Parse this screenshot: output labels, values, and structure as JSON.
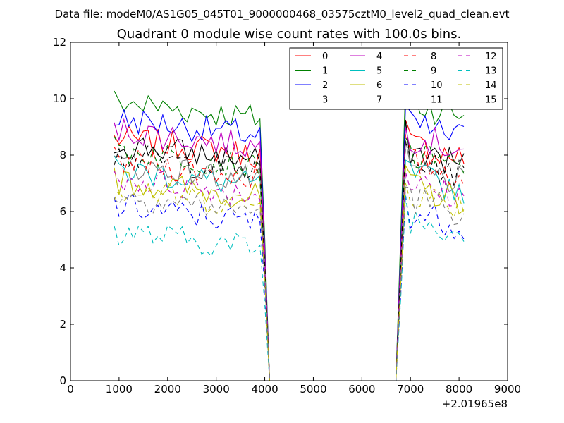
{
  "chart_data": {
    "type": "line",
    "suptitle": "Data file: modeM0/AS1G05_045T01_9000000468_03575cztM0_level2_quad_clean.evt",
    "title": "Quadrant 0 module wise count rates with 100.0s bins.",
    "xlabel": "",
    "ylabel": "",
    "x_offset_label": "+2.01965e8",
    "xlim": [
      0,
      9000
    ],
    "ylim": [
      0,
      12
    ],
    "xticks": [
      0,
      1000,
      2000,
      3000,
      4000,
      5000,
      6000,
      7000,
      8000,
      9000
    ],
    "yticks": [
      0,
      2,
      4,
      6,
      8,
      10,
      12
    ],
    "grid": false,
    "legend": {
      "placement": "top-right",
      "columns": 4
    },
    "segments": [
      {
        "x_start": 900,
        "x_end": 3900,
        "step": 100
      },
      {
        "x": [
          4000,
          4100,
          4200,
          6700,
          6800,
          6900
        ]
      },
      {
        "x_start": 7000,
        "x_end": 8100,
        "step": 100
      }
    ],
    "series": [
      {
        "name": "0",
        "color": "#ff0000",
        "dash": "solid",
        "active1_mean": 8.0,
        "drop_level": 4.5,
        "active2_mean": 7.9
      },
      {
        "name": "1",
        "color": "#008000",
        "dash": "solid",
        "active1_mean": 9.3,
        "drop_level": 5.0,
        "active2_mean": 9.4
      },
      {
        "name": "2",
        "color": "#0000ff",
        "dash": "solid",
        "active1_mean": 8.7,
        "drop_level": 4.7,
        "active2_mean": 8.6
      },
      {
        "name": "3",
        "color": "#000000",
        "dash": "solid",
        "active1_mean": 7.8,
        "drop_level": 4.3,
        "active2_mean": 7.7
      },
      {
        "name": "4",
        "color": "#bf00bf",
        "dash": "solid",
        "active1_mean": 8.3,
        "drop_level": 4.6,
        "active2_mean": 8.2
      },
      {
        "name": "5",
        "color": "#00bfbf",
        "dash": "solid",
        "active1_mean": 6.9,
        "drop_level": 3.9,
        "active2_mean": 6.8
      },
      {
        "name": "6",
        "color": "#bfbf00",
        "dash": "solid",
        "active1_mean": 6.5,
        "drop_level": 3.7,
        "active2_mean": 6.4
      },
      {
        "name": "7",
        "color": "#808080",
        "dash": "solid",
        "active1_mean": 7.1,
        "drop_level": 4.0,
        "active2_mean": 7.0
      },
      {
        "name": "8",
        "color": "#ff0000",
        "dash": "dashed",
        "active1_mean": 7.2,
        "drop_level": 4.0,
        "active2_mean": 7.3
      },
      {
        "name": "9",
        "color": "#008000",
        "dash": "dashed",
        "active1_mean": 7.6,
        "drop_level": 4.2,
        "active2_mean": 7.5
      },
      {
        "name": "10",
        "color": "#0000ff",
        "dash": "dashed",
        "active1_mean": 5.6,
        "drop_level": 3.3,
        "active2_mean": 5.5
      },
      {
        "name": "11",
        "color": "#000000",
        "dash": "dashed",
        "active1_mean": 7.4,
        "drop_level": 4.1,
        "active2_mean": 7.3
      },
      {
        "name": "12",
        "color": "#bf00bf",
        "dash": "dashed",
        "active1_mean": 6.6,
        "drop_level": 3.8,
        "active2_mean": 6.5
      },
      {
        "name": "13",
        "color": "#00bfbf",
        "dash": "dashed",
        "active1_mean": 4.7,
        "drop_level": 2.7,
        "active2_mean": 5.3
      },
      {
        "name": "14",
        "color": "#bfbf00",
        "dash": "dashed",
        "active1_mean": 6.2,
        "drop_level": 3.6,
        "active2_mean": 6.2
      },
      {
        "name": "15",
        "color": "#808080",
        "dash": "dashed",
        "active1_mean": 6.0,
        "drop_level": 3.5,
        "active2_mean": 6.0
      }
    ]
  }
}
